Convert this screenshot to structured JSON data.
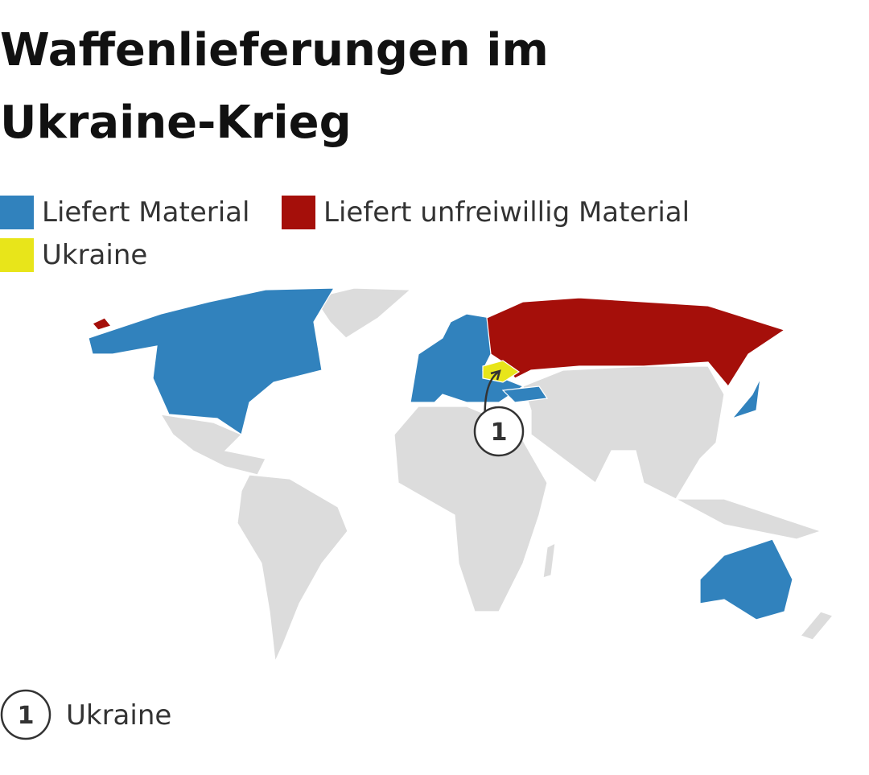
{
  "title": "Waffenlieferungen im Ukraine-Krieg",
  "legend": [
    {
      "label": "Liefert Material",
      "color": "#3182bd"
    },
    {
      "label": "Liefert unfreiwillig Material",
      "color": "#a50f0a"
    },
    {
      "label": "Ukraine",
      "color": "#e8e51a"
    }
  ],
  "map": {
    "base_color": "#dcdcdc"
  },
  "annotations": [
    {
      "number": "1",
      "label": "Ukraine"
    }
  ]
}
